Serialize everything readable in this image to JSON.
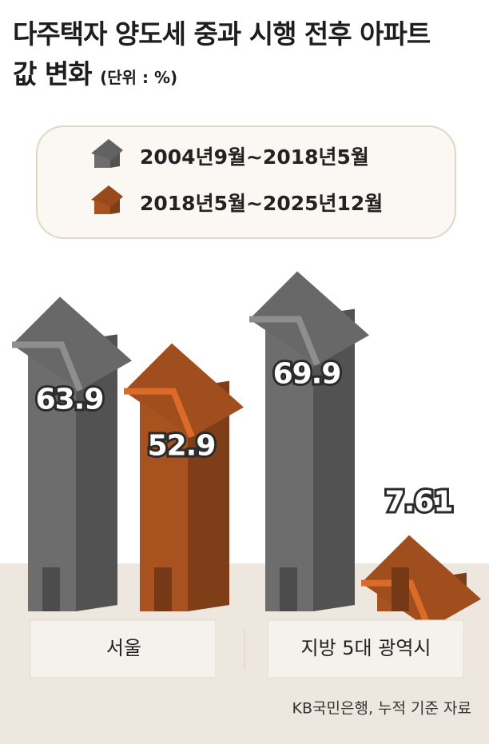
{
  "chart_data": {
    "type": "bar",
    "title": "다주택자 양도세 중과 시행 전후 아파트값 변화",
    "subtitle": "(단위 : %)",
    "categories": [
      "서울",
      "지방 5대 광역시"
    ],
    "series": [
      {
        "name": "2004년9월~2018년5월",
        "color": "#6e6d6d",
        "values": [
          63.9,
          69.9
        ]
      },
      {
        "name": "2018년5월~2025년12월",
        "color": "#a8521f",
        "values": [
          52.9,
          7.61
        ]
      }
    ],
    "source": "KB국민은행, 누적 기준 자료"
  }
}
